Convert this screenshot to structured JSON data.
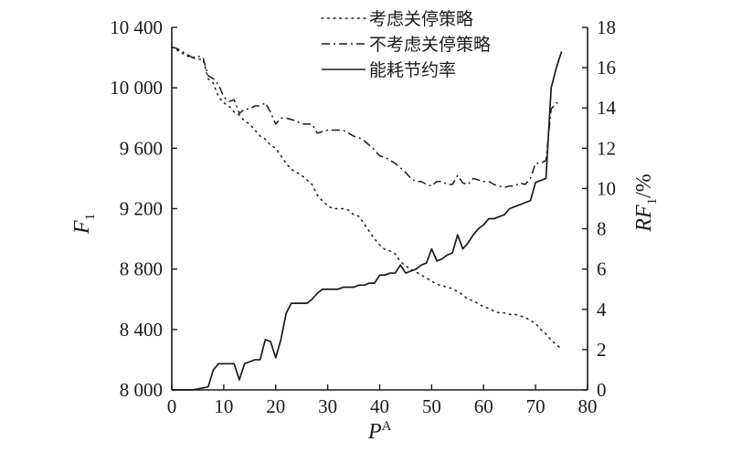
{
  "chart_data": {
    "type": "line",
    "x": [
      0,
      1,
      2,
      3,
      4,
      5,
      6,
      7,
      8,
      9,
      10,
      11,
      12,
      13,
      14,
      15,
      16,
      17,
      18,
      19,
      20,
      21,
      22,
      23,
      24,
      25,
      26,
      27,
      28,
      29,
      30,
      31,
      32,
      33,
      34,
      35,
      36,
      37,
      38,
      39,
      40,
      41,
      42,
      43,
      44,
      45,
      46,
      47,
      48,
      49,
      50,
      51,
      52,
      53,
      54,
      55,
      56,
      57,
      58,
      59,
      60,
      61,
      62,
      63,
      64,
      65,
      66,
      67,
      68,
      69,
      70,
      71,
      72,
      73,
      74,
      75
    ],
    "x_axis": {
      "label_main": "P",
      "label_sup": "A",
      "range": [
        0,
        80
      ],
      "ticks": [
        0,
        10,
        20,
        30,
        40,
        50,
        60,
        70,
        80
      ],
      "tick_labels": [
        "0",
        "10",
        "20",
        "30",
        "40",
        "50",
        "60",
        "70",
        "80"
      ]
    },
    "y_axis_left": {
      "label_main": "F",
      "label_sub": "1",
      "range": [
        8000,
        10400
      ],
      "ticks": [
        8000,
        8400,
        8800,
        9200,
        9600,
        10000,
        10400
      ],
      "tick_labels": [
        "8 000",
        "8 400",
        "8 800",
        "9 200",
        "9 600",
        "10 000",
        "10 400"
      ]
    },
    "y_axis_right": {
      "label_main": "RF",
      "label_sub": "1",
      "label_suffix": "/%",
      "range": [
        0,
        18
      ],
      "ticks": [
        0,
        2,
        4,
        6,
        8,
        10,
        12,
        14,
        16,
        18
      ],
      "tick_labels": [
        "0",
        "2",
        "4",
        "6",
        "8",
        "10",
        "12",
        "14",
        "16",
        "18"
      ]
    },
    "series": [
      {
        "name": "考虑关停策略",
        "axis": "left",
        "style": "dotted",
        "values": [
          10270,
          10250,
          10230,
          10210,
          10200,
          10190,
          10190,
          10060,
          10030,
          9940,
          9900,
          9880,
          9840,
          9820,
          9780,
          9760,
          9720,
          9680,
          9660,
          9620,
          9600,
          9550,
          9500,
          9460,
          9440,
          9420,
          9390,
          9360,
          9290,
          9250,
          9220,
          9200,
          9200,
          9200,
          9190,
          9160,
          9150,
          9100,
          9050,
          9000,
          8960,
          8930,
          8920,
          8900,
          8850,
          8820,
          8800,
          8780,
          8760,
          8740,
          8720,
          8700,
          8690,
          8680,
          8670,
          8650,
          8630,
          8600,
          8590,
          8570,
          8550,
          8540,
          8520,
          8510,
          8510,
          8500,
          8500,
          8490,
          8480,
          8460,
          8440,
          8400,
          8370,
          8330,
          8300,
          8270
        ]
      },
      {
        "name": "不考虑关停策略",
        "axis": "left",
        "style": "dashdot",
        "values": [
          10270,
          10260,
          10240,
          10220,
          10200,
          10210,
          10200,
          10080,
          10060,
          10020,
          9940,
          9910,
          9920,
          9830,
          9860,
          9860,
          9880,
          9880,
          9900,
          9840,
          9760,
          9800,
          9800,
          9790,
          9780,
          9760,
          9760,
          9760,
          9700,
          9710,
          9720,
          9720,
          9720,
          9720,
          9700,
          9680,
          9670,
          9650,
          9620,
          9590,
          9550,
          9540,
          9520,
          9500,
          9470,
          9440,
          9400,
          9380,
          9380,
          9360,
          9350,
          9380,
          9380,
          9360,
          9360,
          9420,
          9370,
          9360,
          9400,
          9390,
          9380,
          9380,
          9360,
          9350,
          9340,
          9350,
          9350,
          9370,
          9360,
          9400,
          9500,
          9500,
          9520,
          9860,
          9900,
          9900
        ]
      },
      {
        "name": "能耗节约率",
        "axis": "right",
        "style": "solid",
        "values": [
          0,
          0,
          0,
          0,
          0,
          0.05,
          0.1,
          0.15,
          1.0,
          1.3,
          1.3,
          1.3,
          1.3,
          0.5,
          1.3,
          1.4,
          1.5,
          1.5,
          2.5,
          2.4,
          1.6,
          2.5,
          3.8,
          4.3,
          4.3,
          4.3,
          4.3,
          4.5,
          4.8,
          5.0,
          5.0,
          5.0,
          5.0,
          5.1,
          5.1,
          5.1,
          5.2,
          5.2,
          5.3,
          5.3,
          5.7,
          5.7,
          5.8,
          5.8,
          6.2,
          5.8,
          5.9,
          6.0,
          6.2,
          6.3,
          7.0,
          6.4,
          6.5,
          6.7,
          6.8,
          7.7,
          7.0,
          7.3,
          7.7,
          8.0,
          8.2,
          8.5,
          8.5,
          8.6,
          8.7,
          9.0,
          9.1,
          9.2,
          9.3,
          9.4,
          10.3,
          10.4,
          10.5,
          15.0,
          16.0,
          16.8
        ]
      }
    ],
    "legend_position": "top"
  }
}
